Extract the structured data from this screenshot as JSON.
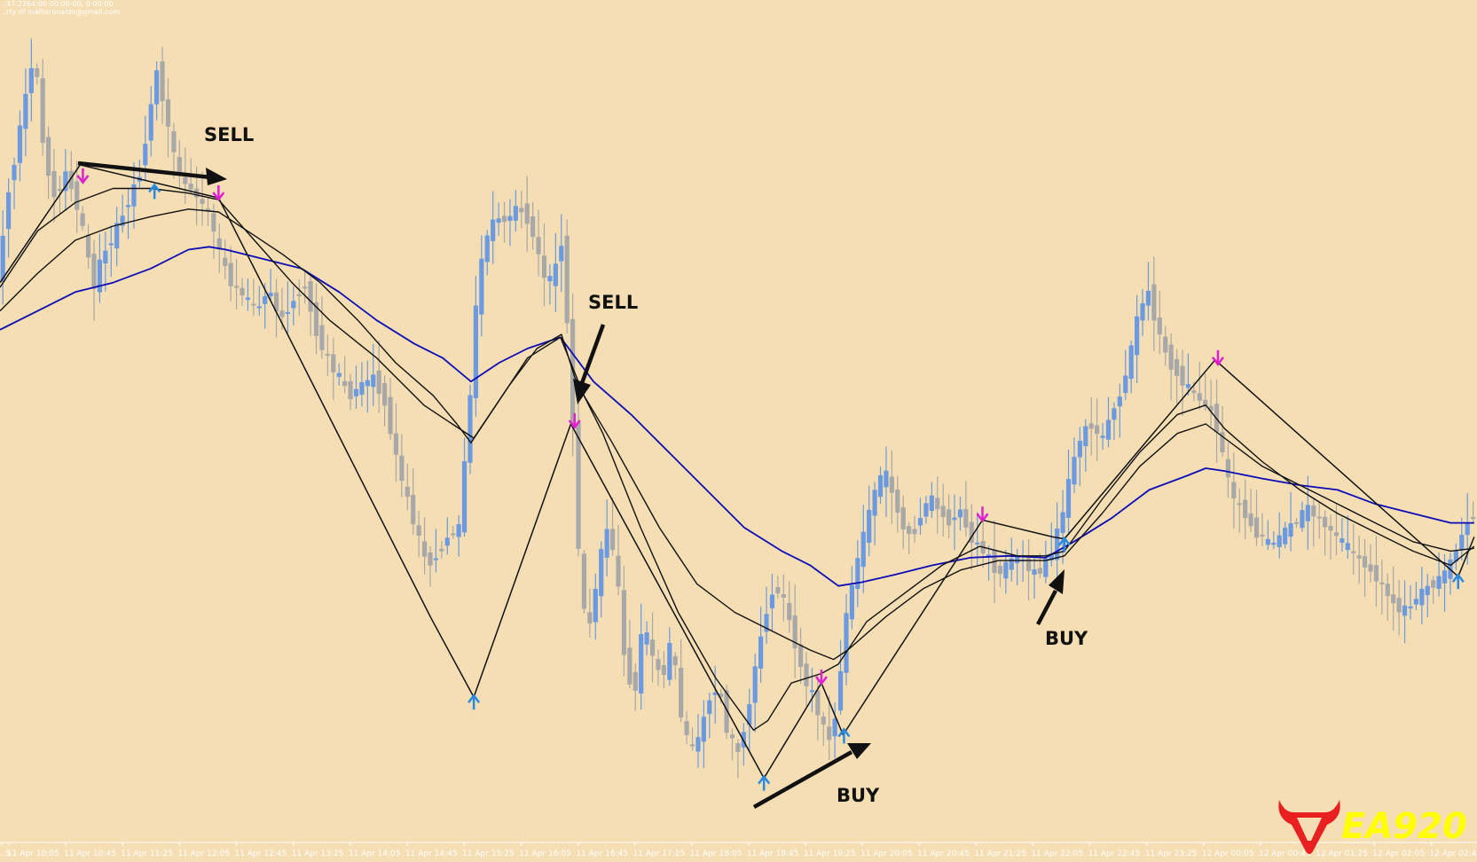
{
  "header": {
    "line1": "..47:2264:00 00:00:00, 0:00:00",
    "line2": "..rty of malhsronaldo@gmail.com"
  },
  "colors": {
    "background": "#f5deb3",
    "bull_candle": "#6b9ae0",
    "bear_candle": "#a8a8a8",
    "ma_blue": "#0b0bb8",
    "ma_black": "#111111",
    "zigzag": "#111111",
    "sell_arrow": "#e020d0",
    "buy_arrow": "#2a8ae0",
    "logo_red": "#e82020",
    "logo_text": "#ffff00"
  },
  "annotations": [
    {
      "label": "SELL"
    },
    {
      "label": "SELL"
    },
    {
      "label": "BUY"
    },
    {
      "label": "BUY"
    }
  ],
  "logo": {
    "text": "EA920",
    "icon": "bull-head-icon"
  },
  "chart_data": {
    "type": "candlestick",
    "x_ticks": [
      "..5",
      "11 Apr 10:05",
      "11 Apr 10:45",
      "11 Apr 11:25",
      "11 Apr 12:05",
      "11 Apr 12:45",
      "11 Apr 13:25",
      "11 Apr 14:05",
      "11 Apr 14:45",
      "11 Apr 15:25",
      "11 Apr 16:05",
      "11 Apr 16:45",
      "11 Apr 17:25",
      "11 Apr 18:05",
      "11 Apr 18:45",
      "11 Apr 19:25",
      "11 Apr 20:05",
      "11 Apr 20:45",
      "11 Apr 21:25",
      "11 Apr 22:05",
      "11 Apr 22:45",
      "11 Apr 23:25",
      "12 Apr 00:05",
      "12 Apr 00:45",
      "12 Apr 01:25",
      "12 Apr 02:05",
      "12 Apr 02:45"
    ],
    "price_path": [
      [
        0,
        300
      ],
      [
        12,
        200
      ],
      [
        20,
        160
      ],
      [
        32,
        90
      ],
      [
        40,
        55
      ],
      [
        48,
        150
      ],
      [
        60,
        210
      ],
      [
        72,
        185
      ],
      [
        80,
        200
      ],
      [
        92,
        250
      ],
      [
        102,
        305
      ],
      [
        112,
        270
      ],
      [
        124,
        250
      ],
      [
        138,
        215
      ],
      [
        150,
        190
      ],
      [
        162,
        120
      ],
      [
        170,
        70
      ],
      [
        182,
        140
      ],
      [
        194,
        190
      ],
      [
        205,
        200
      ],
      [
        216,
        215
      ],
      [
        226,
        230
      ],
      [
        236,
        270
      ],
      [
        248,
        300
      ],
      [
        262,
        315
      ],
      [
        276,
        330
      ],
      [
        288,
        305
      ],
      [
        300,
        340
      ],
      [
        314,
        320
      ],
      [
        326,
        300
      ],
      [
        338,
        350
      ],
      [
        350,
        380
      ],
      [
        362,
        400
      ],
      [
        374,
        420
      ],
      [
        386,
        410
      ],
      [
        398,
        400
      ],
      [
        410,
        420
      ],
      [
        420,
        470
      ],
      [
        432,
        520
      ],
      [
        444,
        560
      ],
      [
        456,
        600
      ],
      [
        466,
        590
      ],
      [
        478,
        570
      ],
      [
        490,
        560
      ],
      [
        500,
        450
      ],
      [
        510,
        300
      ],
      [
        520,
        250
      ],
      [
        530,
        230
      ],
      [
        540,
        235
      ],
      [
        552,
        220
      ],
      [
        562,
        230
      ],
      [
        572,
        260
      ],
      [
        582,
        300
      ],
      [
        592,
        290
      ],
      [
        600,
        250
      ],
      [
        610,
        430
      ],
      [
        618,
        600
      ],
      [
        626,
        680
      ],
      [
        636,
        620
      ],
      [
        646,
        560
      ],
      [
        656,
        590
      ],
      [
        666,
        700
      ],
      [
        676,
        740
      ],
      [
        686,
        660
      ],
      [
        696,
        700
      ],
      [
        706,
        720
      ],
      [
        716,
        680
      ],
      [
        726,
        760
      ],
      [
        736,
        800
      ],
      [
        746,
        780
      ],
      [
        756,
        740
      ],
      [
        766,
        730
      ],
      [
        776,
        780
      ],
      [
        786,
        800
      ],
      [
        796,
        760
      ],
      [
        806,
        700
      ],
      [
        816,
        650
      ],
      [
        826,
        620
      ],
      [
        836,
        640
      ],
      [
        846,
        680
      ],
      [
        856,
        720
      ],
      [
        866,
        740
      ],
      [
        876,
        770
      ],
      [
        886,
        790
      ],
      [
        894,
        720
      ],
      [
        902,
        650
      ],
      [
        912,
        600
      ],
      [
        922,
        560
      ],
      [
        932,
        520
      ],
      [
        942,
        500
      ],
      [
        952,
        530
      ],
      [
        962,
        560
      ],
      [
        972,
        570
      ],
      [
        982,
        540
      ],
      [
        992,
        530
      ],
      [
        1002,
        545
      ],
      [
        1012,
        555
      ],
      [
        1022,
        540
      ],
      [
        1032,
        570
      ],
      [
        1042,
        580
      ],
      [
        1052,
        590
      ],
      [
        1062,
        610
      ],
      [
        1072,
        600
      ],
      [
        1082,
        590
      ],
      [
        1092,
        600
      ],
      [
        1102,
        610
      ],
      [
        1112,
        600
      ],
      [
        1122,
        580
      ],
      [
        1132,
        540
      ],
      [
        1142,
        490
      ],
      [
        1152,
        460
      ],
      [
        1162,
        450
      ],
      [
        1172,
        470
      ],
      [
        1182,
        440
      ],
      [
        1192,
        420
      ],
      [
        1202,
        380
      ],
      [
        1212,
        330
      ],
      [
        1222,
        310
      ],
      [
        1232,
        350
      ],
      [
        1242,
        380
      ],
      [
        1252,
        395
      ],
      [
        1262,
        410
      ],
      [
        1272,
        420
      ],
      [
        1282,
        430
      ],
      [
        1292,
        440
      ],
      [
        1302,
        490
      ],
      [
        1312,
        530
      ],
      [
        1322,
        540
      ],
      [
        1332,
        560
      ],
      [
        1342,
        570
      ],
      [
        1352,
        580
      ],
      [
        1362,
        570
      ],
      [
        1372,
        560
      ],
      [
        1382,
        550
      ],
      [
        1392,
        540
      ],
      [
        1402,
        550
      ],
      [
        1412,
        560
      ],
      [
        1422,
        570
      ],
      [
        1432,
        580
      ],
      [
        1442,
        590
      ],
      [
        1452,
        600
      ],
      [
        1462,
        610
      ],
      [
        1472,
        625
      ],
      [
        1482,
        640
      ],
      [
        1492,
        650
      ],
      [
        1502,
        640
      ],
      [
        1512,
        630
      ],
      [
        1522,
        620
      ],
      [
        1532,
        615
      ],
      [
        1542,
        600
      ],
      [
        1552,
        575
      ],
      [
        1565,
        545
      ]
    ],
    "zigzag": [
      [
        0,
        300
      ],
      [
        85,
        175
      ],
      [
        232,
        210
      ],
      [
        457,
        655
      ],
      [
        503,
        740
      ],
      [
        606,
        450
      ],
      [
        811,
        826
      ],
      [
        872,
        725
      ],
      [
        895,
        780
      ],
      [
        1043,
        552
      ],
      [
        1118,
        570
      ],
      [
        1130,
        572
      ],
      [
        1290,
        382
      ],
      [
        1548,
        612
      ],
      [
        1565,
        570
      ]
    ],
    "ma_black_fast": [
      [
        0,
        305
      ],
      [
        40,
        245
      ],
      [
        80,
        215
      ],
      [
        120,
        200
      ],
      [
        160,
        200
      ],
      [
        200,
        205
      ],
      [
        232,
        212
      ],
      [
        270,
        255
      ],
      [
        310,
        300
      ],
      [
        350,
        340
      ],
      [
        400,
        380
      ],
      [
        450,
        430
      ],
      [
        480,
        450
      ],
      [
        503,
        465
      ],
      [
        540,
        410
      ],
      [
        570,
        370
      ],
      [
        596,
        355
      ],
      [
        610,
        400
      ],
      [
        640,
        460
      ],
      [
        680,
        560
      ],
      [
        720,
        650
      ],
      [
        760,
        720
      ],
      [
        800,
        775
      ],
      [
        815,
        765
      ],
      [
        840,
        725
      ],
      [
        872,
        715
      ],
      [
        890,
        705
      ],
      [
        920,
        660
      ],
      [
        960,
        630
      ],
      [
        1000,
        600
      ],
      [
        1040,
        580
      ],
      [
        1080,
        590
      ],
      [
        1110,
        590
      ],
      [
        1130,
        585
      ],
      [
        1170,
        530
      ],
      [
        1210,
        480
      ],
      [
        1250,
        440
      ],
      [
        1280,
        430
      ],
      [
        1300,
        455
      ],
      [
        1340,
        490
      ],
      [
        1380,
        520
      ],
      [
        1420,
        545
      ],
      [
        1460,
        565
      ],
      [
        1500,
        585
      ],
      [
        1540,
        600
      ],
      [
        1565,
        580
      ]
    ],
    "ma_black_slow": [
      [
        0,
        330
      ],
      [
        40,
        290
      ],
      [
        80,
        255
      ],
      [
        120,
        240
      ],
      [
        160,
        230
      ],
      [
        200,
        222
      ],
      [
        232,
        225
      ],
      [
        270,
        250
      ],
      [
        300,
        270
      ],
      [
        340,
        300
      ],
      [
        380,
        340
      ],
      [
        420,
        385
      ],
      [
        460,
        420
      ],
      [
        485,
        450
      ],
      [
        500,
        470
      ],
      [
        520,
        440
      ],
      [
        560,
        380
      ],
      [
        595,
        358
      ],
      [
        620,
        420
      ],
      [
        650,
        470
      ],
      [
        700,
        560
      ],
      [
        740,
        620
      ],
      [
        780,
        650
      ],
      [
        820,
        670
      ],
      [
        860,
        690
      ],
      [
        885,
        700
      ],
      [
        900,
        690
      ],
      [
        940,
        655
      ],
      [
        980,
        625
      ],
      [
        1020,
        605
      ],
      [
        1060,
        595
      ],
      [
        1110,
        595
      ],
      [
        1130,
        590
      ],
      [
        1170,
        545
      ],
      [
        1210,
        495
      ],
      [
        1250,
        460
      ],
      [
        1280,
        450
      ],
      [
        1300,
        465
      ],
      [
        1340,
        495
      ],
      [
        1380,
        515
      ],
      [
        1420,
        535
      ],
      [
        1460,
        555
      ],
      [
        1500,
        575
      ],
      [
        1540,
        585
      ],
      [
        1565,
        582
      ]
    ],
    "ma_blue": [
      [
        0,
        350
      ],
      [
        40,
        330
      ],
      [
        80,
        310
      ],
      [
        120,
        300
      ],
      [
        160,
        285
      ],
      [
        200,
        265
      ],
      [
        222,
        262
      ],
      [
        240,
        265
      ],
      [
        280,
        275
      ],
      [
        320,
        285
      ],
      [
        360,
        310
      ],
      [
        400,
        340
      ],
      [
        440,
        365
      ],
      [
        470,
        380
      ],
      [
        500,
        405
      ],
      [
        530,
        385
      ],
      [
        560,
        370
      ],
      [
        595,
        358
      ],
      [
        630,
        405
      ],
      [
        670,
        440
      ],
      [
        710,
        480
      ],
      [
        750,
        520
      ],
      [
        790,
        560
      ],
      [
        830,
        585
      ],
      [
        860,
        600
      ],
      [
        890,
        622
      ],
      [
        915,
        618
      ],
      [
        950,
        610
      ],
      [
        990,
        600
      ],
      [
        1030,
        592
      ],
      [
        1070,
        590
      ],
      [
        1110,
        592
      ],
      [
        1140,
        575
      ],
      [
        1180,
        550
      ],
      [
        1220,
        520
      ],
      [
        1260,
        505
      ],
      [
        1280,
        497
      ],
      [
        1300,
        500
      ],
      [
        1340,
        508
      ],
      [
        1380,
        515
      ],
      [
        1420,
        520
      ],
      [
        1460,
        535
      ],
      [
        1500,
        545
      ],
      [
        1540,
        555
      ],
      [
        1565,
        555
      ]
    ],
    "sell_signals": [
      [
        88,
        190
      ],
      [
        232,
        208
      ],
      [
        610,
        450
      ],
      [
        872,
        722
      ],
      [
        1043,
        549
      ],
      [
        1293,
        383
      ]
    ],
    "buy_signals": [
      [
        164,
        200
      ],
      [
        503,
        742
      ],
      [
        811,
        828
      ],
      [
        896,
        778
      ],
      [
        1130,
        575
      ],
      [
        1548,
        614
      ]
    ]
  }
}
